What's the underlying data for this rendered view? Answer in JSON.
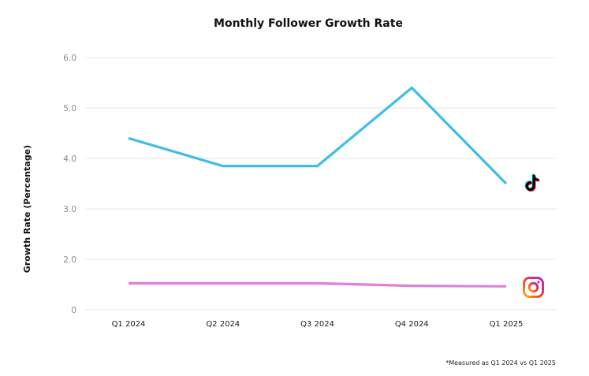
{
  "chart_data": {
    "type": "line",
    "title": "Monthly Follower Growth Rate",
    "xlabel": "",
    "ylabel": "Growth Rate (Percentage)",
    "categories": [
      "Q1 2024",
      "Q2 2024",
      "Q3 2024",
      "Q4 2024",
      "Q1 2025"
    ],
    "y_ticks": [
      "0",
      "2.0",
      "3.0",
      "4.0",
      "5.0",
      "6.0"
    ],
    "y_tick_values": [
      0,
      2,
      3,
      4,
      5,
      6
    ],
    "ylim": [
      0,
      6
    ],
    "grid": true,
    "legend": "icons at right end of each series",
    "series": [
      {
        "name": "TikTok",
        "icon": "tiktok-icon",
        "color": "#3dbde8",
        "values": [
          4.4,
          3.85,
          3.85,
          5.4,
          3.5
        ]
      },
      {
        "name": "Instagram",
        "icon": "instagram-icon",
        "color": "#e07fdc",
        "values": [
          1.05,
          1.05,
          1.05,
          0.95,
          0.93
        ]
      }
    ],
    "footnote": "*Measured as Q1 2024 vs Q1 2025"
  }
}
